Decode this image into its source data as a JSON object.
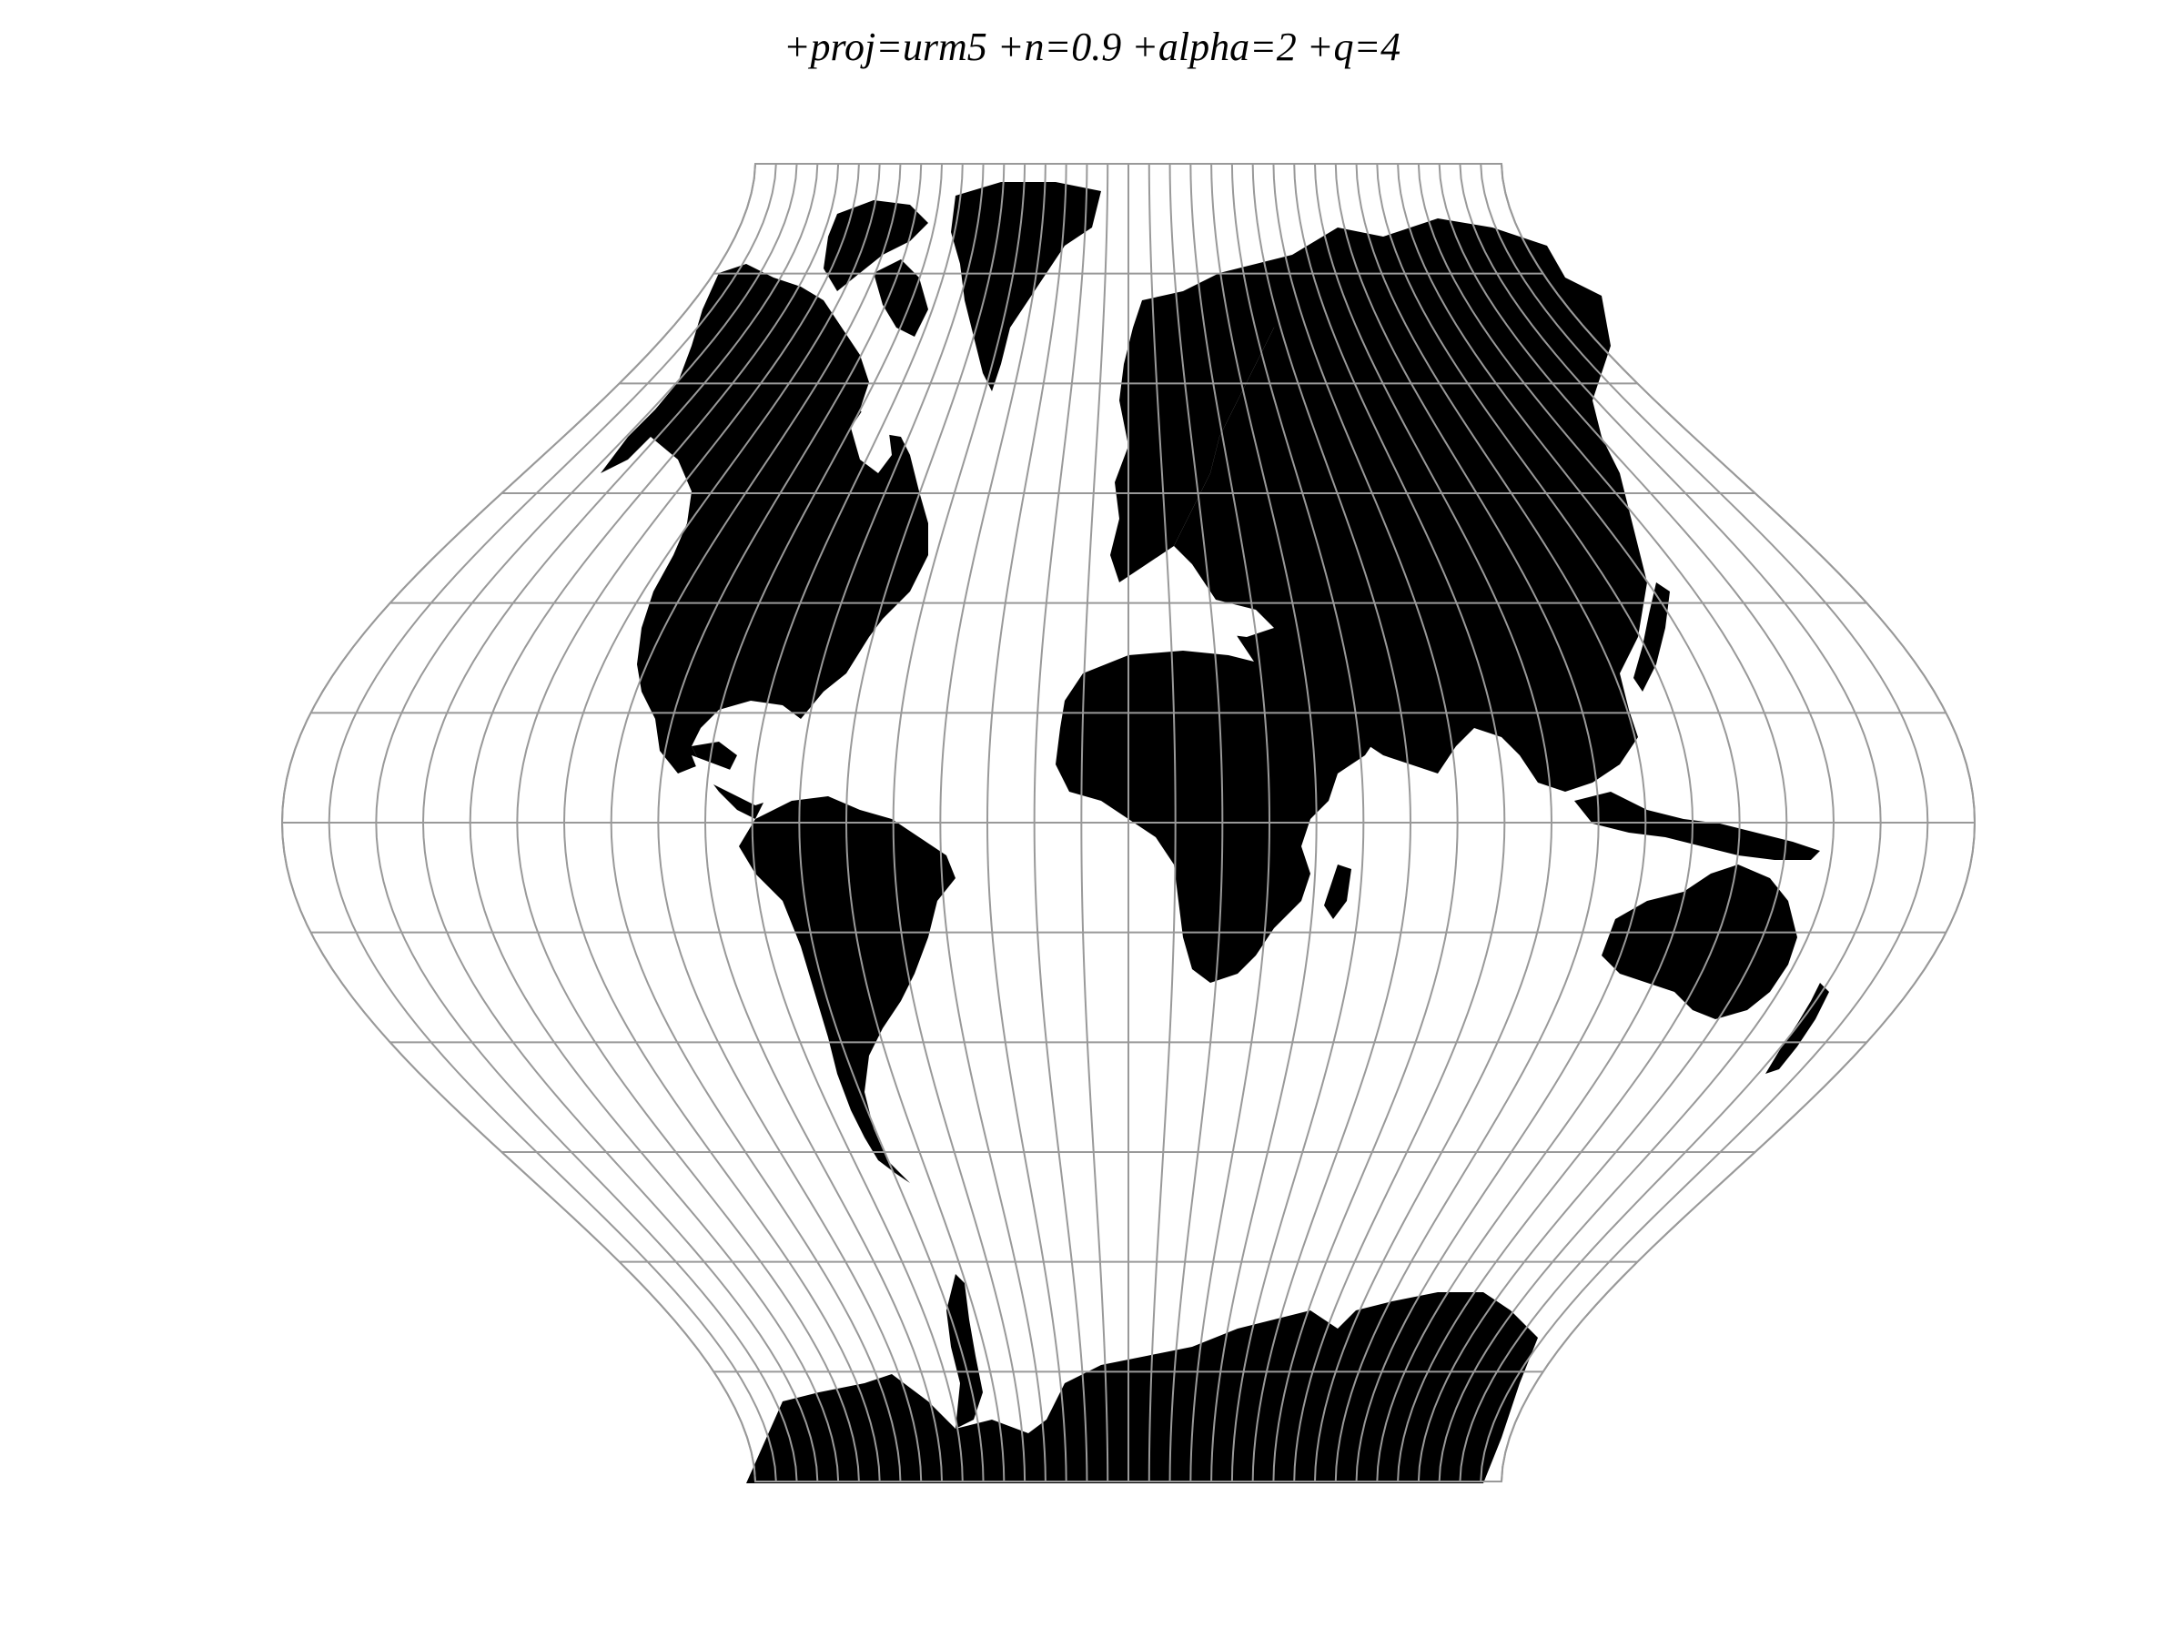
{
  "title": "+proj=urm5 +n=0.9 +alpha=2 +q=4",
  "colors": {
    "background": "#ffffff",
    "land": "#000000",
    "graticule": "#999999"
  },
  "graticule": {
    "meridian_step_degrees": 10,
    "parallel_step_degrees": 15
  }
}
